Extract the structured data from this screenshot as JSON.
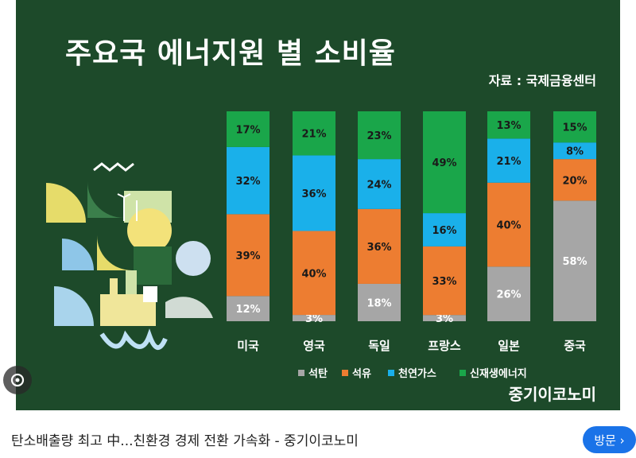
{
  "chart_data": {
    "type": "bar",
    "stacked": true,
    "title": "주요국 에너지원 별 소비율",
    "source": "자료 : 국제금융센터",
    "categories": [
      "미국",
      "영국",
      "독일",
      "프랑스",
      "일본",
      "중국"
    ],
    "series": [
      {
        "name": "석탄",
        "color": "#a6a6a6",
        "values": [
          12,
          3,
          18,
          3,
          26,
          58
        ]
      },
      {
        "name": "석유",
        "color": "#ed7d31",
        "values": [
          39,
          40,
          36,
          33,
          40,
          20
        ]
      },
      {
        "name": "천연가스",
        "color": "#1ab0ea",
        "values": [
          32,
          36,
          24,
          16,
          21,
          8
        ]
      },
      {
        "name": "신재생에너지",
        "color": "#1aa64a",
        "values": [
          17,
          21,
          23,
          49,
          13,
          15
        ]
      }
    ],
    "value_labels": [
      [
        "12%",
        "39%",
        "32%",
        "17%"
      ],
      [
        "3%",
        "40%",
        "36%",
        "21%"
      ],
      [
        "18%",
        "36%",
        "24%",
        "23%"
      ],
      [
        "3%",
        "33%",
        "16%",
        "49%"
      ],
      [
        "26%",
        "40%",
        "21%",
        "13%"
      ],
      [
        "58%",
        "20%",
        "8%",
        "15%"
      ]
    ],
    "legend_position": "bottom-right",
    "grid": false
  },
  "brand": "중기이코노미",
  "caption": "탄소배출량 최고 中...친환경 경제 전환 가속화 - 중기이코노미",
  "visit_button": "방문 ›",
  "icons": {
    "lens": "lens-icon"
  }
}
